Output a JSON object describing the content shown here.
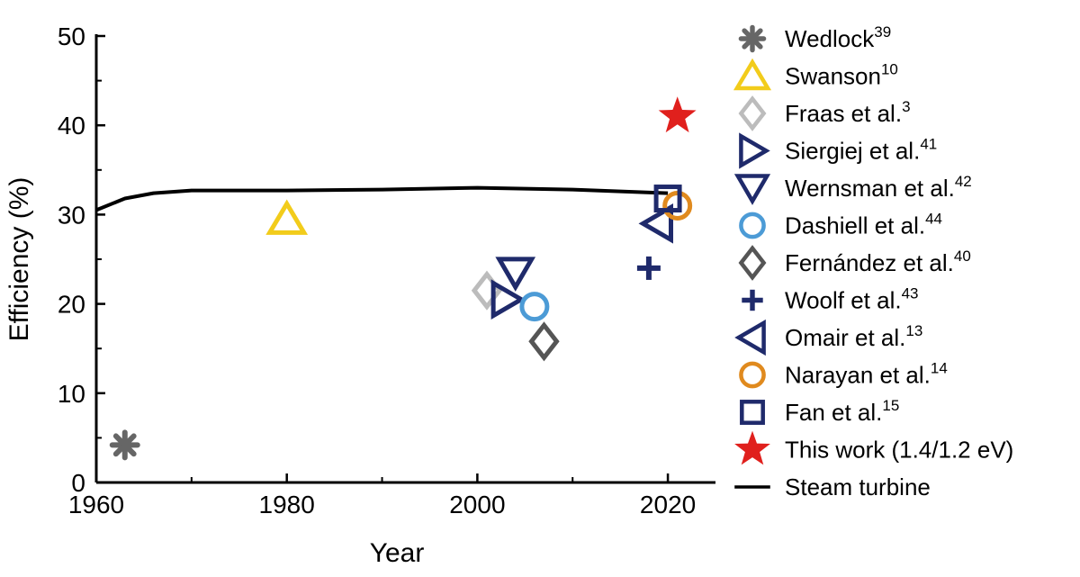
{
  "chart_data": {
    "type": "scatter",
    "xlabel": "Year",
    "ylabel": "Efficiency (%)",
    "xlim": [
      1960,
      2025
    ],
    "ylim": [
      0,
      50
    ],
    "xticks": [
      "1960",
      "1980",
      "2000",
      "2020"
    ],
    "yticks": [
      "0",
      "10",
      "20",
      "30",
      "40",
      "50"
    ],
    "grid": false,
    "legend_position": "right",
    "series": [
      {
        "name": "Wedlock",
        "ref": "39",
        "marker": "asterisk",
        "color": "#666666",
        "points": [
          [
            1963,
            4.2
          ]
        ]
      },
      {
        "name": "Swanson",
        "ref": "10",
        "marker": "triangle-up",
        "color": "#f2cc1b",
        "points": [
          [
            1980,
            29.5
          ]
        ]
      },
      {
        "name": "Fraas et al.",
        "ref": "3",
        "marker": "diamond",
        "color": "#bcbcbc",
        "points": [
          [
            2001,
            21.5
          ]
        ]
      },
      {
        "name": "Siergiej et al.",
        "ref": "41",
        "marker": "triangle-right",
        "color": "#1f2a6b",
        "points": [
          [
            2003,
            20.5
          ]
        ]
      },
      {
        "name": "Wernsman et al.",
        "ref": "42",
        "marker": "triangle-down",
        "color": "#1f2a6b",
        "points": [
          [
            2004,
            23.5
          ]
        ]
      },
      {
        "name": "Dashiell et al.",
        "ref": "44",
        "marker": "circle",
        "color": "#4c9bd6",
        "points": [
          [
            2006,
            19.7
          ]
        ]
      },
      {
        "name": "Fernández et al.",
        "ref": "40",
        "marker": "diamond",
        "color": "#555555",
        "points": [
          [
            2007,
            15.8
          ]
        ]
      },
      {
        "name": "Woolf et al.",
        "ref": "43",
        "marker": "plus",
        "color": "#1f2a6b",
        "points": [
          [
            2018,
            24
          ]
        ]
      },
      {
        "name": "Omair et al.",
        "ref": "13",
        "marker": "triangle-left",
        "color": "#1f2a6b",
        "points": [
          [
            2019,
            29
          ]
        ]
      },
      {
        "name": "Narayan et al.",
        "ref": "14",
        "marker": "circle",
        "color": "#e08a1e",
        "points": [
          [
            2021,
            31
          ]
        ]
      },
      {
        "name": "Fan et al.",
        "ref": "15",
        "marker": "square",
        "color": "#1f2a6b",
        "points": [
          [
            2020,
            31.8
          ]
        ]
      },
      {
        "name": "This work (1.4/1.2 eV)",
        "ref": "",
        "marker": "star",
        "color": "#e0201d",
        "points": [
          [
            2021,
            41
          ]
        ]
      },
      {
        "name": "Steam turbine",
        "ref": "",
        "marker": "line",
        "color": "#000000",
        "points": [
          [
            1960,
            30.5
          ],
          [
            1963,
            31.8
          ],
          [
            1966,
            32.4
          ],
          [
            1970,
            32.7
          ],
          [
            1980,
            32.7
          ],
          [
            1990,
            32.8
          ],
          [
            2000,
            33.0
          ],
          [
            2010,
            32.8
          ],
          [
            2020,
            32.4
          ]
        ]
      }
    ]
  }
}
